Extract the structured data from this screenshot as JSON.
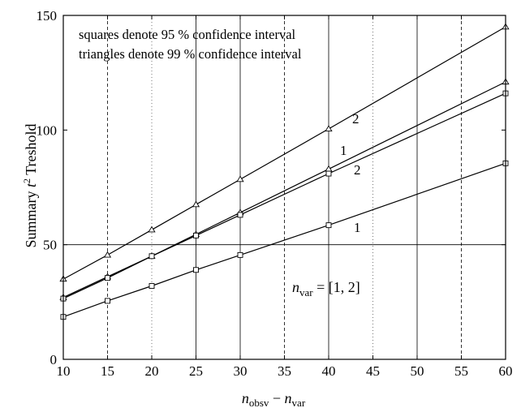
{
  "chart_data": {
    "type": "line",
    "title": "",
    "xlabel": {
      "main": "n",
      "sub1": "obsv",
      "minus": " − ",
      "main2": "n",
      "sub2": "var"
    },
    "ylabel": {
      "prefix": "Summary ",
      "t": "t",
      "sup": "2",
      "suffix": "  Treshold"
    },
    "xlim": [
      10,
      60
    ],
    "ylim": [
      0,
      150
    ],
    "xticks": [
      10,
      15,
      20,
      25,
      30,
      35,
      40,
      45,
      50,
      55,
      60
    ],
    "yticks": [
      0,
      50,
      100,
      150
    ],
    "grid": {
      "solid_x": [
        25,
        30,
        40,
        50,
        60
      ],
      "dashed_x": [
        15,
        35,
        55
      ],
      "dotted_x": [
        20,
        45
      ],
      "solid_y": [
        50
      ]
    },
    "annotations": {
      "squares_note": "squares denote 95 % confidence interval",
      "triangles_note": "triangles denote 99 % confidence interval",
      "nvar_label": {
        "main": "n",
        "sub": "var",
        "value": " = [1, 2]"
      }
    },
    "series": [
      {
        "name": "",
        "marker": "triangle",
        "label": "2",
        "x": [
          10,
          15,
          20,
          25,
          30,
          40,
          60
        ],
        "y": [
          35,
          45.5,
          56.5,
          67.5,
          78.5,
          100.5,
          145
        ]
      },
      {
        "name": "",
        "marker": "triangle",
        "label": "1",
        "x": [
          10,
          15,
          20,
          25,
          30,
          40,
          60
        ],
        "y": [
          27,
          36,
          45,
          54.5,
          64,
          83,
          121
        ]
      },
      {
        "name": "",
        "marker": "square",
        "label": "2",
        "x": [
          10,
          15,
          20,
          25,
          30,
          40,
          60
        ],
        "y": [
          26.5,
          35.5,
          45,
          54,
          63,
          81,
          116
        ]
      },
      {
        "name": "",
        "marker": "square",
        "label": "1",
        "x": [
          10,
          15,
          20,
          25,
          30,
          40,
          60
        ],
        "y": [
          18.5,
          25.5,
          32,
          39,
          45.5,
          58.5,
          85.5
        ]
      }
    ]
  }
}
